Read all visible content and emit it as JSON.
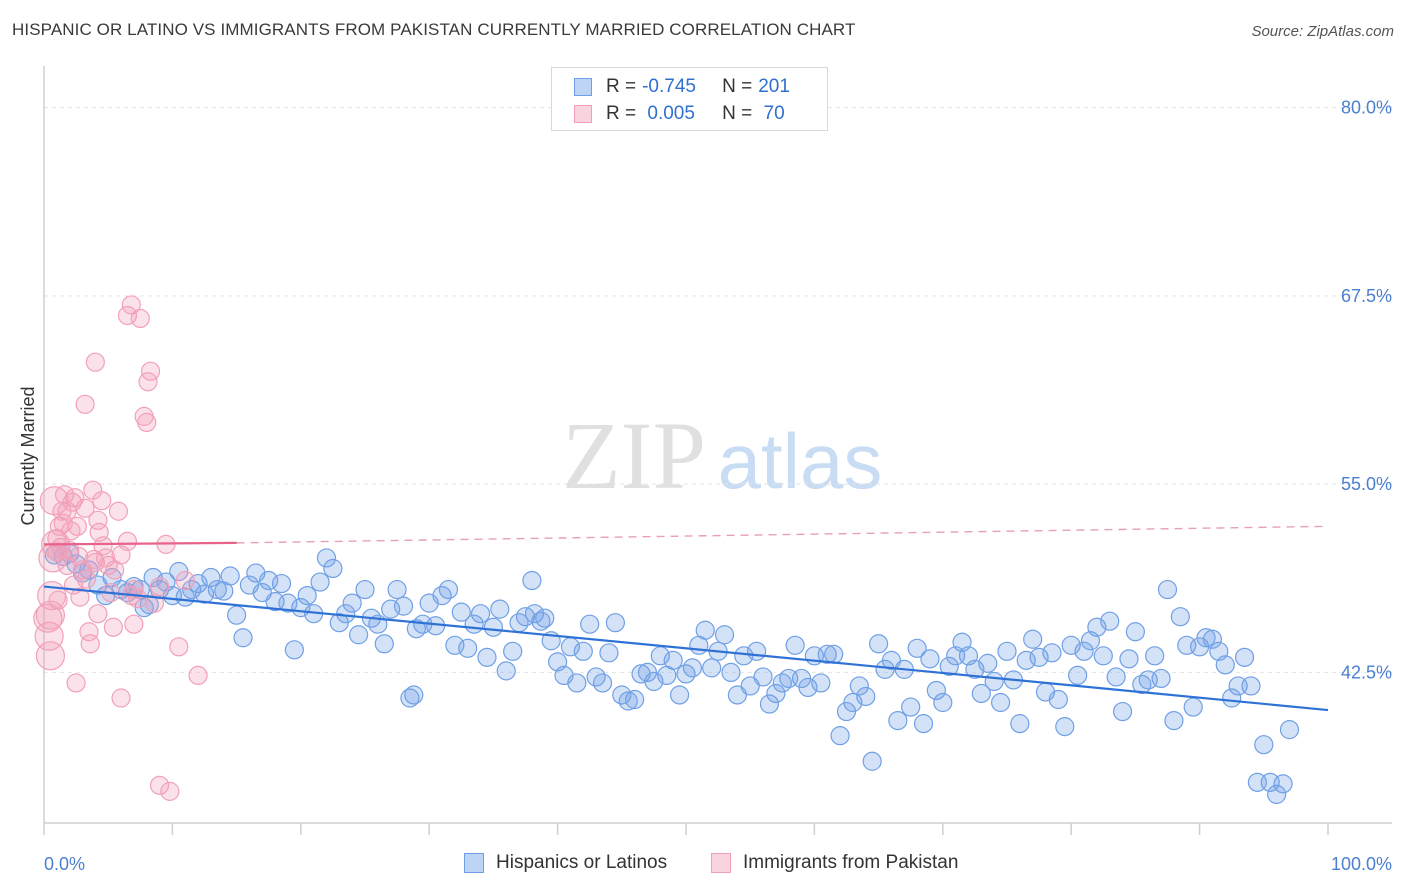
{
  "title": "HISPANIC OR LATINO VS IMMIGRANTS FROM PAKISTAN CURRENTLY MARRIED CORRELATION CHART",
  "source": "Source: ZipAtlas.com",
  "watermark": {
    "zip": "ZIP",
    "atlas": "atlas"
  },
  "legend": {
    "rows": [
      {
        "r_label": "R = ",
        "r_value": "-0.745",
        "n_label": "N = ",
        "n_value": "201",
        "color": "#6fa0e6"
      },
      {
        "r_label": "R = ",
        "r_value": " 0.005",
        "n_label": "N = ",
        "n_value": " 70",
        "color": "#f2a0b8"
      }
    ]
  },
  "bottom_legend": [
    {
      "label": "Hispanics or Latinos",
      "color": "#6fa0e6"
    },
    {
      "label": "Immigrants from Pakistan",
      "color": "#f2a0b8"
    }
  ],
  "chart_data": {
    "type": "scatter",
    "title": "HISPANIC OR LATINO VS IMMIGRANTS FROM PAKISTAN CURRENTLY MARRIED CORRELATION CHART",
    "xlabel": "",
    "ylabel": "Currently Married",
    "xlim": [
      0,
      100
    ],
    "ylim": [
      32.5,
      82.5
    ],
    "y_ticks": [
      42.5,
      55.0,
      67.5,
      80.0
    ],
    "y_tick_labels": [
      "42.5%",
      "55.0%",
      "67.5%",
      "80.0%"
    ],
    "x_tick_labels": [
      "0.0%",
      "100.0%"
    ],
    "grid": true,
    "legend_placement": "top-center",
    "series": [
      {
        "name": "Hispanics or Latinos",
        "color": "#6fa0e6",
        "trend": {
          "x": [
            0,
            100
          ],
          "y": [
            48.2,
            40.0
          ],
          "style": "solid"
        },
        "points": [
          [
            0.8,
            50.3
          ],
          [
            1.5,
            50.2
          ],
          [
            2.0,
            50.4
          ],
          [
            2.5,
            49.7
          ],
          [
            3.0,
            49.1
          ],
          [
            3.5,
            49.3
          ],
          [
            4.2,
            48.3
          ],
          [
            4.8,
            47.6
          ],
          [
            5.3,
            48.8
          ],
          [
            6.0,
            48.0
          ],
          [
            6.5,
            47.8
          ],
          [
            7.0,
            48.2
          ],
          [
            7.5,
            48.0
          ],
          [
            7.8,
            46.8
          ],
          [
            8.2,
            47.0
          ],
          [
            8.5,
            48.8
          ],
          [
            9.0,
            48.0
          ],
          [
            9.5,
            48.5
          ],
          [
            10.0,
            47.6
          ],
          [
            10.5,
            49.2
          ],
          [
            11.0,
            47.5
          ],
          [
            11.5,
            48.0
          ],
          [
            12.0,
            48.4
          ],
          [
            12.5,
            47.7
          ],
          [
            13.0,
            48.8
          ],
          [
            13.5,
            48.0
          ],
          [
            14.0,
            47.9
          ],
          [
            14.5,
            48.9
          ],
          [
            15.0,
            46.3
          ],
          [
            15.5,
            44.8
          ],
          [
            16.0,
            48.3
          ],
          [
            16.5,
            49.1
          ],
          [
            17.0,
            47.8
          ],
          [
            17.5,
            48.6
          ],
          [
            18.0,
            47.2
          ],
          [
            18.5,
            48.4
          ],
          [
            19.0,
            47.1
          ],
          [
            19.5,
            44.0
          ],
          [
            20.0,
            46.8
          ],
          [
            20.5,
            47.6
          ],
          [
            21.0,
            46.4
          ],
          [
            21.5,
            48.5
          ],
          [
            22.0,
            50.1
          ],
          [
            22.5,
            49.4
          ],
          [
            23.0,
            45.8
          ],
          [
            23.5,
            46.4
          ],
          [
            24.0,
            47.1
          ],
          [
            24.5,
            45.0
          ],
          [
            25.0,
            48.0
          ],
          [
            25.5,
            46.1
          ],
          [
            26.0,
            45.7
          ],
          [
            26.5,
            44.4
          ],
          [
            27.0,
            46.7
          ],
          [
            27.5,
            48.0
          ],
          [
            28.0,
            46.9
          ],
          [
            28.5,
            40.8
          ],
          [
            28.8,
            41.0
          ],
          [
            29.0,
            45.4
          ],
          [
            29.5,
            45.7
          ],
          [
            30.0,
            47.1
          ],
          [
            30.5,
            45.6
          ],
          [
            31.0,
            47.6
          ],
          [
            31.5,
            48.0
          ],
          [
            32.0,
            44.3
          ],
          [
            32.5,
            46.5
          ],
          [
            33.0,
            44.1
          ],
          [
            33.5,
            45.7
          ],
          [
            34.0,
            46.4
          ],
          [
            34.5,
            43.5
          ],
          [
            35.0,
            45.5
          ],
          [
            35.5,
            46.7
          ],
          [
            36.0,
            42.6
          ],
          [
            36.5,
            43.9
          ],
          [
            37.0,
            45.8
          ],
          [
            37.5,
            46.2
          ],
          [
            38.0,
            48.6
          ],
          [
            38.2,
            46.4
          ],
          [
            38.7,
            45.9
          ],
          [
            39.0,
            46.1
          ],
          [
            39.5,
            44.6
          ],
          [
            40.0,
            43.2
          ],
          [
            40.5,
            42.3
          ],
          [
            41.0,
            44.2
          ],
          [
            41.5,
            41.8
          ],
          [
            42.0,
            43.9
          ],
          [
            42.5,
            45.7
          ],
          [
            43.0,
            42.2
          ],
          [
            43.5,
            41.8
          ],
          [
            44.0,
            43.8
          ],
          [
            44.5,
            45.8
          ],
          [
            45.0,
            41.0
          ],
          [
            45.5,
            40.6
          ],
          [
            46.0,
            40.7
          ],
          [
            46.5,
            42.4
          ],
          [
            47.0,
            42.5
          ],
          [
            47.5,
            41.9
          ],
          [
            48.0,
            43.6
          ],
          [
            48.5,
            42.3
          ],
          [
            49.0,
            43.3
          ],
          [
            49.5,
            41.0
          ],
          [
            50.0,
            42.4
          ],
          [
            50.5,
            42.8
          ],
          [
            51.0,
            44.3
          ],
          [
            51.5,
            45.3
          ],
          [
            52.0,
            42.8
          ],
          [
            52.5,
            43.9
          ],
          [
            53.0,
            45.0
          ],
          [
            53.5,
            42.5
          ],
          [
            54.0,
            41.0
          ],
          [
            54.5,
            43.6
          ],
          [
            55.0,
            41.6
          ],
          [
            55.5,
            43.9
          ],
          [
            56.0,
            42.2
          ],
          [
            56.5,
            40.4
          ],
          [
            57.0,
            41.1
          ],
          [
            57.5,
            41.8
          ],
          [
            58.0,
            42.1
          ],
          [
            58.5,
            44.3
          ],
          [
            59.0,
            42.1
          ],
          [
            59.5,
            41.5
          ],
          [
            60.0,
            43.6
          ],
          [
            60.5,
            41.8
          ],
          [
            61.0,
            43.7
          ],
          [
            61.5,
            43.7
          ],
          [
            62.0,
            38.3
          ],
          [
            62.5,
            39.9
          ],
          [
            63.0,
            40.5
          ],
          [
            63.5,
            41.6
          ],
          [
            64.0,
            40.9
          ],
          [
            64.5,
            36.6
          ],
          [
            65.0,
            44.4
          ],
          [
            65.5,
            42.7
          ],
          [
            66.0,
            43.3
          ],
          [
            66.5,
            39.3
          ],
          [
            67.0,
            42.7
          ],
          [
            67.5,
            40.2
          ],
          [
            68.0,
            44.1
          ],
          [
            68.5,
            39.1
          ],
          [
            69.0,
            43.4
          ],
          [
            69.5,
            41.3
          ],
          [
            70.0,
            40.5
          ],
          [
            70.5,
            42.9
          ],
          [
            71.0,
            43.6
          ],
          [
            71.5,
            44.5
          ],
          [
            72.0,
            43.6
          ],
          [
            72.5,
            42.7
          ],
          [
            73.0,
            41.1
          ],
          [
            73.5,
            43.1
          ],
          [
            74.0,
            41.9
          ],
          [
            74.5,
            40.5
          ],
          [
            75.0,
            43.9
          ],
          [
            75.5,
            42.0
          ],
          [
            76.0,
            39.1
          ],
          [
            76.5,
            43.3
          ],
          [
            77.0,
            44.7
          ],
          [
            77.5,
            43.5
          ],
          [
            78.0,
            41.2
          ],
          [
            78.5,
            43.8
          ],
          [
            79.0,
            40.7
          ],
          [
            79.5,
            38.9
          ],
          [
            80.0,
            44.3
          ],
          [
            80.5,
            42.3
          ],
          [
            81.0,
            43.9
          ],
          [
            81.5,
            44.6
          ],
          [
            82.0,
            45.5
          ],
          [
            82.5,
            43.6
          ],
          [
            83.0,
            45.9
          ],
          [
            83.5,
            42.2
          ],
          [
            84.0,
            39.9
          ],
          [
            84.5,
            43.4
          ],
          [
            85.0,
            45.2
          ],
          [
            85.5,
            41.7
          ],
          [
            86.0,
            42.0
          ],
          [
            86.5,
            43.6
          ],
          [
            87.0,
            42.1
          ],
          [
            87.5,
            48.0
          ],
          [
            88.0,
            39.3
          ],
          [
            88.5,
            46.2
          ],
          [
            89.0,
            44.3
          ],
          [
            89.5,
            40.2
          ],
          [
            90.0,
            44.2
          ],
          [
            90.5,
            44.8
          ],
          [
            91.0,
            44.7
          ],
          [
            91.5,
            43.9
          ],
          [
            92.0,
            43.0
          ],
          [
            92.5,
            40.8
          ],
          [
            93.0,
            41.6
          ],
          [
            93.5,
            43.5
          ],
          [
            94.0,
            41.6
          ],
          [
            94.5,
            35.2
          ],
          [
            95.0,
            37.7
          ],
          [
            95.5,
            35.2
          ],
          [
            96.0,
            34.4
          ],
          [
            96.5,
            35.1
          ],
          [
            97.0,
            38.7
          ]
        ]
      },
      {
        "name": "Immigrants from Pakistan",
        "color": "#f2a0b8",
        "trend": {
          "x": [
            0,
            15,
            100
          ],
          "y": [
            51.0,
            51.1,
            52.2
          ],
          "style": "solid-then-dashed"
        },
        "points": [
          [
            0.3,
            46.1
          ],
          [
            0.4,
            44.9
          ],
          [
            0.5,
            46.3
          ],
          [
            0.6,
            47.6
          ],
          [
            0.7,
            50.1
          ],
          [
            0.8,
            53.9
          ],
          [
            1.0,
            51.4
          ],
          [
            1.2,
            52.2
          ],
          [
            1.3,
            50.8
          ],
          [
            1.5,
            52.4
          ],
          [
            1.6,
            54.3
          ],
          [
            1.8,
            53.2
          ],
          [
            2.0,
            50.6
          ],
          [
            2.1,
            51.9
          ],
          [
            2.2,
            53.8
          ],
          [
            2.4,
            54.1
          ],
          [
            2.6,
            52.2
          ],
          [
            2.8,
            47.5
          ],
          [
            3.0,
            49.3
          ],
          [
            3.2,
            53.4
          ],
          [
            3.3,
            48.7
          ],
          [
            3.5,
            45.2
          ],
          [
            3.6,
            44.4
          ],
          [
            3.8,
            54.6
          ],
          [
            4.0,
            49.8
          ],
          [
            4.2,
            52.6
          ],
          [
            4.3,
            51.8
          ],
          [
            4.5,
            53.9
          ],
          [
            4.6,
            50.9
          ],
          [
            4.8,
            50.1
          ],
          [
            5.0,
            49.6
          ],
          [
            5.2,
            47.8
          ],
          [
            5.4,
            45.5
          ],
          [
            5.5,
            49.3
          ],
          [
            5.8,
            53.2
          ],
          [
            6.0,
            50.3
          ],
          [
            6.5,
            51.2
          ],
          [
            6.8,
            47.6
          ],
          [
            7.0,
            48.0
          ],
          [
            7.3,
            47.4
          ],
          [
            2.5,
            41.8
          ],
          [
            4.2,
            46.4
          ],
          [
            3.2,
            60.3
          ],
          [
            4.0,
            63.1
          ],
          [
            6.5,
            66.2
          ],
          [
            6.8,
            66.9
          ],
          [
            7.5,
            66.0
          ],
          [
            7.8,
            59.5
          ],
          [
            8.0,
            59.1
          ],
          [
            8.1,
            61.8
          ],
          [
            8.3,
            62.5
          ],
          [
            9.0,
            48.2
          ],
          [
            9.5,
            51.0
          ],
          [
            10.5,
            44.2
          ],
          [
            11.0,
            48.6
          ],
          [
            12.0,
            42.3
          ],
          [
            9.0,
            35.0
          ],
          [
            9.8,
            34.6
          ],
          [
            6.0,
            40.8
          ],
          [
            1.0,
            50.5
          ],
          [
            1.8,
            49.6
          ],
          [
            2.3,
            48.3
          ],
          [
            0.9,
            51.0
          ],
          [
            1.4,
            53.2
          ],
          [
            2.7,
            50.2
          ],
          [
            3.9,
            50.0
          ],
          [
            0.5,
            43.6
          ],
          [
            1.1,
            47.3
          ],
          [
            7.0,
            45.7
          ],
          [
            8.6,
            47.1
          ]
        ]
      }
    ]
  }
}
